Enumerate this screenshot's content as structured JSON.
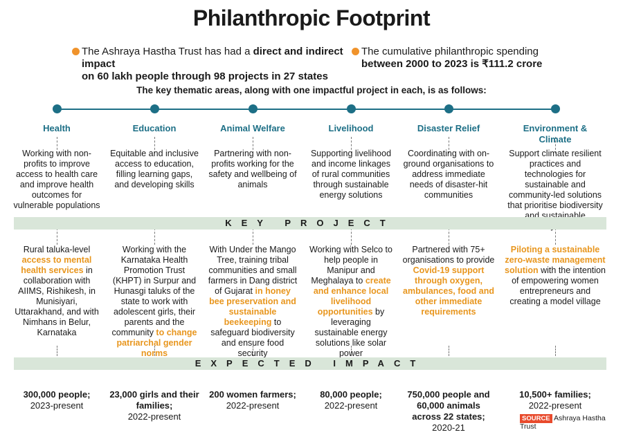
{
  "title": "Philanthropic Footprint",
  "bullet1": {
    "line1_pre": "The Ashraya Hastha Trust has had a ",
    "line1_bold": "direct and indirect impact",
    "line2_bold": "on 60 lakh people through 98 projects in 27 states"
  },
  "bullet2": {
    "line1": "The cumulative philanthropic spending",
    "line2_bold": "between 2000 to 2023 is ₹111.2 crore"
  },
  "intro": "The key thematic areas, along with one impactful project in each, is as follows:",
  "key_project_label": "KEY PROJECT",
  "expected_impact_label": "EXPECTED IMPACT",
  "columns": [
    {
      "category": "Health",
      "description": "Working with non-profits to improve access to health care and improve health outcomes for vulnerable populations",
      "project": [
        {
          "t": "Rural taluka-level "
        },
        {
          "t": "access to mental health services",
          "hl": true
        },
        {
          "t": " in collaboration with AIIMS, Rishikesh, in Munisiyari, Uttarakhand, and with Nimhans in Belur, Karnataka"
        }
      ],
      "impact_bold": "300,000 people;",
      "impact_rest": "2023-present"
    },
    {
      "category": "Education",
      "description": "Equitable  and inclusive access to education, filling learning gaps, and developing skills",
      "project": [
        {
          "t": "Working with the Karnataka Health Promotion Trust (KHPT) in Surpur and Hunasgi taluks of the state to work with adolescent girls, their parents and the community "
        },
        {
          "t": "to change patriarchal gender norms",
          "hl": true
        }
      ],
      "impact_bold": "23,000 girls and their families;",
      "impact_rest": "2022-present"
    },
    {
      "category": "Animal Welfare",
      "description": "Partnering with non-profits working for the safety and wellbeing of animals",
      "project": [
        {
          "t": "With Under the Mango Tree, training tribal communities and small farmers in Dang district of Gujarat "
        },
        {
          "t": "in honey bee preservation and sustainable beekeeping",
          "hl": true
        },
        {
          "t": " to safeguard biodiversity and ensure food security"
        }
      ],
      "impact_bold": "200 women farmers;",
      "impact_rest": "2022-present"
    },
    {
      "category": "Livelihood",
      "description": "Supporting livelihood and income linkages of rural communities through sustainable energy solutions",
      "project": [
        {
          "t": "Working with Selco to help people in Manipur and Meghalaya to "
        },
        {
          "t": "create and enhance local livelihood opportunities",
          "hl": true
        },
        {
          "t": " by leveraging sustainable energy solutions like solar power"
        }
      ],
      "impact_bold": "80,000 people;",
      "impact_rest": "2022-present"
    },
    {
      "category": "Disaster Relief",
      "description": "Coordinating with on-ground organisations to address immediate needs of disaster-hit communities",
      "project": [
        {
          "t": "Partnered with 75+ organisations to provide "
        },
        {
          "t": "Covid-19 support through oxygen, ambulances, food and other immediate requirements",
          "hl": true
        }
      ],
      "impact_bold": "750,000 people and 60,000 animals across 22 states;",
      "impact_rest": " 2020-21"
    },
    {
      "category": "Environment & Climate",
      "description": "Support climate resilient practices and technologies for sustainable and community-led solutions that prioritise biodiversity and sustainable ecosystems",
      "project": [
        {
          "t": "Piloting a sustainable zero-waste management solution",
          "hl": true
        },
        {
          "t": " with the intention of empowering women entrepreneurs and creating a model village"
        }
      ],
      "impact_bold": "10,500+ families;",
      "impact_rest": "2022-present"
    }
  ],
  "source_tag": "SOURCE",
  "source_text": "Ashraya Hastha Trust",
  "colors": {
    "accent": "#1d6f86",
    "highlight": "#e8961e",
    "band": "#d9e6d9",
    "bullet": "#f0932b",
    "source": "#e84a2c"
  }
}
